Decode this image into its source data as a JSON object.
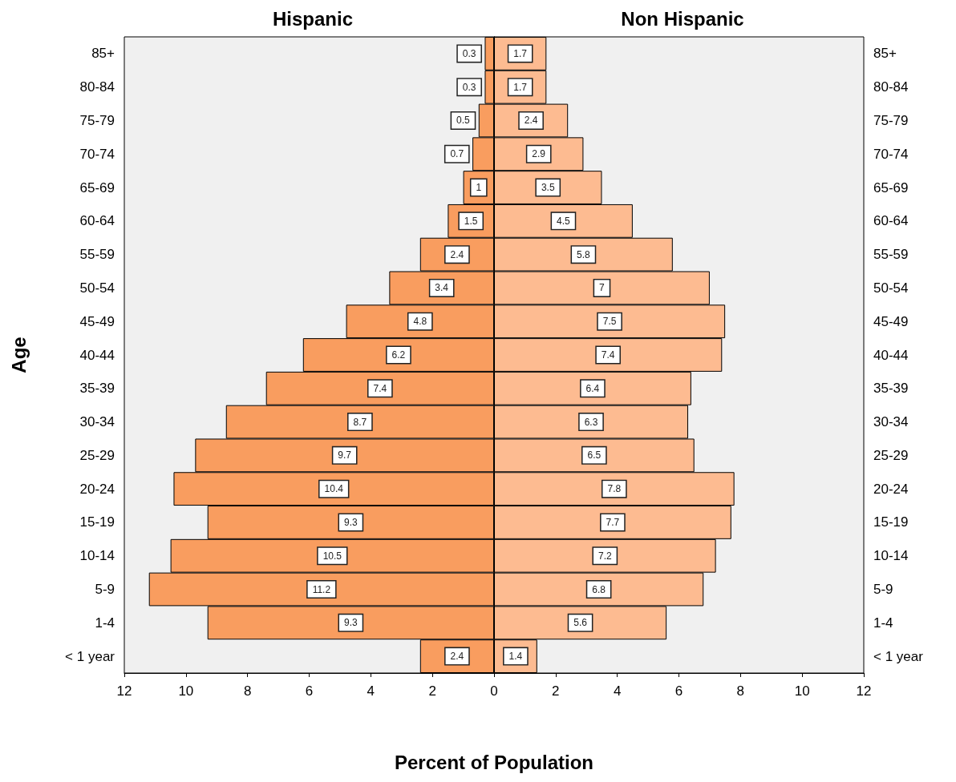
{
  "chart_data": [
    {
      "type": "bar",
      "title": "Hispanic",
      "ylabel": "Age",
      "orientation": "horizontal",
      "categories": [
        "85+",
        "80-84",
        "75-79",
        "70-74",
        "65-69",
        "60-64",
        "55-59",
        "50-54",
        "45-49",
        "40-44",
        "35-39",
        "30-34",
        "25-29",
        "20-24",
        "15-19",
        "10-14",
        "5-9",
        "1-4",
        "< 1 year"
      ],
      "values": [
        0.3,
        0.3,
        0.5,
        0.7,
        1,
        1.5,
        2.4,
        3.4,
        4.8,
        6.2,
        7.4,
        8.7,
        9.7,
        10.4,
        9.3,
        10.5,
        11.2,
        9.3,
        2.4
      ],
      "color": "#f99d5f",
      "xlim": [
        12,
        0
      ],
      "xticks": [
        12,
        10,
        8,
        6,
        4,
        2,
        {
          "value": 0,
          "label": null
        }
      ],
      "data_labels": true
    },
    {
      "type": "bar",
      "title": "Non Hispanic",
      "xlabel": "Percent of Population",
      "orientation": "horizontal",
      "categories": [
        "85+",
        "80-84",
        "75-79",
        "70-74",
        "65-69",
        "60-64",
        "55-59",
        "50-54",
        "45-49",
        "40-44",
        "35-39",
        "30-34",
        "25-29",
        "20-24",
        "15-19",
        "10-14",
        "5-9",
        "1-4",
        "< 1 year"
      ],
      "values": [
        1.7,
        1.7,
        2.4,
        2.9,
        3.5,
        4.5,
        5.8,
        7,
        7.5,
        7.4,
        6.4,
        6.3,
        6.5,
        7.8,
        7.7,
        7.2,
        6.8,
        5.6,
        1.4
      ],
      "color": "#fdbb91",
      "xlim": [
        0,
        12
      ],
      "xticks": [
        0,
        2,
        4,
        6,
        8,
        10,
        12
      ],
      "data_labels": true
    }
  ]
}
